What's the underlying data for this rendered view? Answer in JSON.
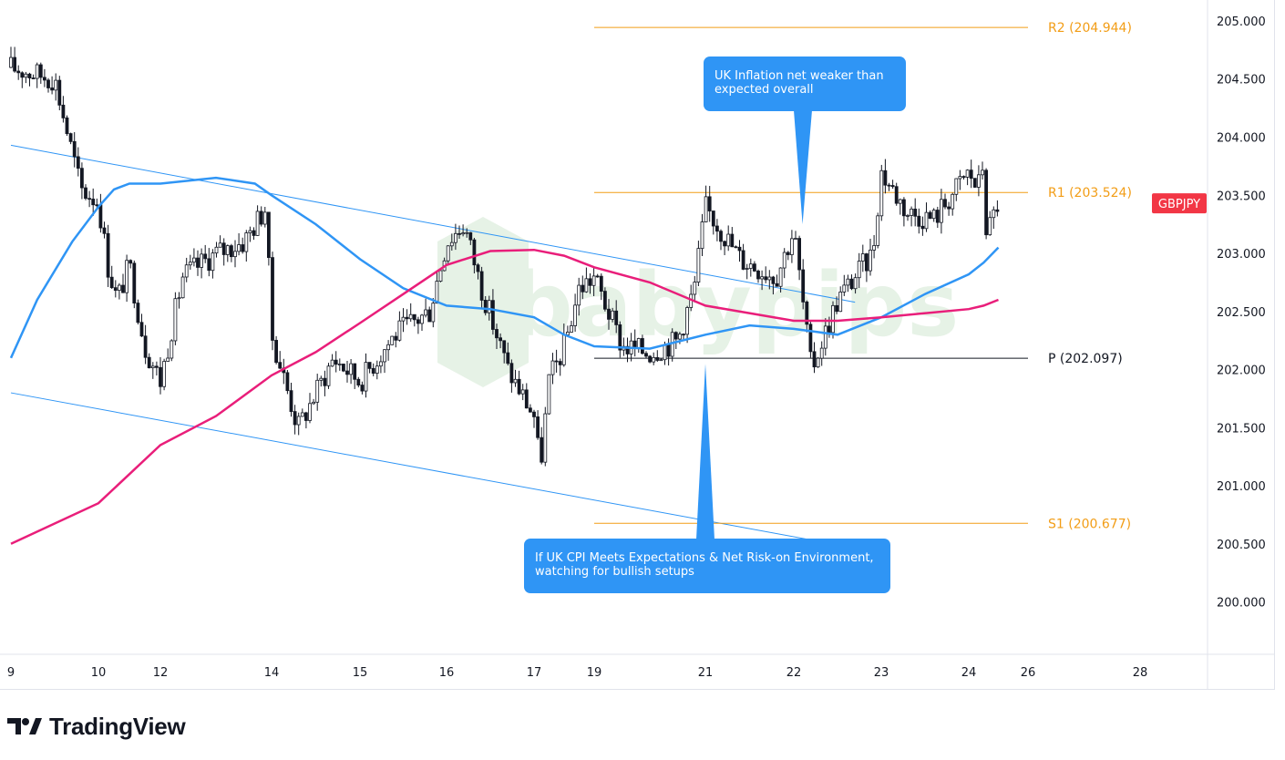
{
  "chart_data": {
    "type": "candlestick",
    "symbol": "GBPJPY",
    "x_ticks": [
      "9",
      "10",
      "12",
      "14",
      "15",
      "16",
      "17",
      "19",
      "21",
      "22",
      "23",
      "24",
      "26",
      "28"
    ],
    "y_ticks": [
      "205.000",
      "204.500",
      "204.000",
      "203.500",
      "203.000",
      "202.500",
      "202.000",
      "201.500",
      "201.000",
      "200.500",
      "200.000"
    ],
    "ylim": [
      199.55,
      205.18
    ],
    "pivot_levels": [
      {
        "label": "R2 (204.944)",
        "value": 204.944,
        "color": "#f29d16"
      },
      {
        "label": "R1 (203.524)",
        "value": 203.524,
        "color": "#f29d16"
      },
      {
        "label": "P (202.097)",
        "value": 202.097,
        "color": "#131722"
      },
      {
        "label": "S1 (200.677)",
        "value": 200.677,
        "color": "#f29d16"
      }
    ],
    "price_tag": {
      "label": "GBPJPY",
      "value": 203.43,
      "color": "#f23645"
    },
    "close_path": [
      [
        "9",
        204.6
      ],
      [
        "9.5",
        204.5
      ],
      [
        "9.8",
        203.55
      ],
      [
        "10",
        203.45
      ],
      [
        "10.3",
        202.9
      ],
      [
        "10.6",
        202.6
      ],
      [
        "11",
        202.9
      ],
      [
        "11.5",
        202.2
      ],
      [
        "12",
        201.9
      ],
      [
        "12.4",
        202.8
      ],
      [
        "13",
        203.0
      ],
      [
        "13.5",
        203.1
      ],
      [
        "13.9",
        203.4
      ],
      [
        "14",
        202.3
      ],
      [
        "14.3",
        201.5
      ],
      [
        "14.7",
        202.1
      ],
      [
        "15",
        201.9
      ],
      [
        "15.4",
        202.3
      ],
      [
        "15.8",
        202.5
      ],
      [
        "16",
        203.1
      ],
      [
        "16.2",
        203.25
      ],
      [
        "16.4",
        202.7
      ],
      [
        "16.7",
        202.0
      ],
      [
        "17",
        201.6
      ],
      [
        "17.2",
        201.15
      ],
      [
        "17.5",
        201.9
      ],
      [
        "18",
        202.2
      ],
      [
        "18.5",
        202.7
      ],
      [
        "19",
        202.8
      ],
      [
        "19.5",
        202.2
      ],
      [
        "20",
        202.15
      ],
      [
        "20.5",
        202.25
      ],
      [
        "20.8",
        202.7
      ],
      [
        "21",
        203.4
      ],
      [
        "21.4",
        202.95
      ],
      [
        "21.8",
        202.8
      ],
      [
        "22",
        203.2
      ],
      [
        "22.2",
        202.0
      ],
      [
        "22.5",
        202.6
      ],
      [
        "22.9",
        203.0
      ],
      [
        "23",
        203.7
      ],
      [
        "23.3",
        203.35
      ],
      [
        "23.6",
        203.3
      ],
      [
        "24",
        203.7
      ],
      [
        "24.3",
        203.55
      ],
      [
        "24.5",
        203.8
      ],
      [
        "24.6",
        203.15
      ],
      [
        "24.8",
        203.3
      ],
      [
        "25",
        203.45
      ]
    ],
    "series": [
      {
        "color": "#2f95f5",
        "points": [
          [
            "9",
            202.1
          ],
          [
            "9.3",
            202.6
          ],
          [
            "9.7",
            203.1
          ],
          [
            "10",
            203.4
          ],
          [
            "10.5",
            203.55
          ],
          [
            "11",
            203.6
          ],
          [
            "12",
            203.6
          ],
          [
            "13",
            203.65
          ],
          [
            "13.7",
            203.6
          ],
          [
            "14",
            203.5
          ],
          [
            "14.5",
            203.25
          ],
          [
            "15",
            202.95
          ],
          [
            "15.5",
            202.7
          ],
          [
            "16",
            202.55
          ],
          [
            "16.5",
            202.52
          ],
          [
            "17",
            202.45
          ],
          [
            "18",
            202.3
          ],
          [
            "19",
            202.2
          ],
          [
            "20",
            202.18
          ],
          [
            "21",
            202.3
          ],
          [
            "21.5",
            202.38
          ],
          [
            "22",
            202.35
          ],
          [
            "22.5",
            202.3
          ],
          [
            "23",
            202.45
          ],
          [
            "23.5",
            202.65
          ],
          [
            "24",
            202.82
          ],
          [
            "24.5",
            202.92
          ],
          [
            "25",
            203.05
          ]
        ]
      },
      {
        "color": "#e91e7a",
        "points": [
          [
            "9",
            200.5
          ],
          [
            "10",
            200.85
          ],
          [
            "11",
            201.1
          ],
          [
            "12",
            201.35
          ],
          [
            "13",
            201.6
          ],
          [
            "14",
            201.95
          ],
          [
            "14.5",
            202.15
          ],
          [
            "15",
            202.4
          ],
          [
            "15.5",
            202.65
          ],
          [
            "16",
            202.9
          ],
          [
            "16.5",
            203.02
          ],
          [
            "17",
            203.03
          ],
          [
            "18",
            202.98
          ],
          [
            "19",
            202.88
          ],
          [
            "20",
            202.75
          ],
          [
            "21",
            202.55
          ],
          [
            "22",
            202.42
          ],
          [
            "22.5",
            202.42
          ],
          [
            "23",
            202.45
          ],
          [
            "24",
            202.52
          ],
          [
            "24.5",
            202.55
          ],
          [
            "25",
            202.6
          ]
        ]
      }
    ],
    "channel_lines": [
      {
        "from": [
          "9",
          203.93
        ],
        "to": [
          "22.7",
          202.58
        ]
      },
      {
        "from": [
          "9",
          201.8
        ],
        "to": [
          "22.3",
          200.52
        ]
      }
    ]
  },
  "annotations": [
    {
      "text": "UK Inflation net weaker than expected overall",
      "pointer_x": "22.1",
      "pointer_y": 203.25
    },
    {
      "text": "If UK CPI Meets Expectations & Net Risk-on Environment, watching for bullish setups",
      "pointer_x": "21",
      "pointer_y": 202.05
    }
  ],
  "watermark": {
    "text": "babypips",
    "color": "#e6f2e6"
  },
  "footer": {
    "brand": "TradingView"
  }
}
